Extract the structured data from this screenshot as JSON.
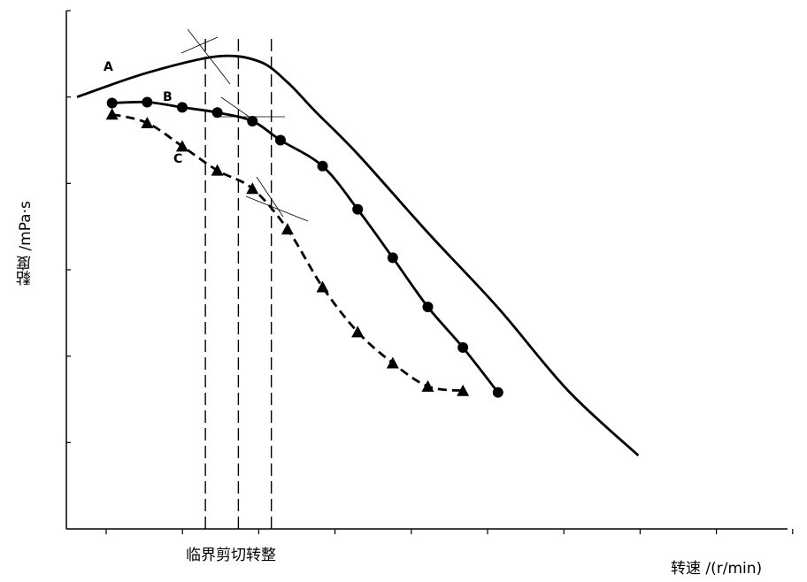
{
  "chart_data": {
    "type": "line",
    "title": "",
    "xlabel": "转速 /(r/min)",
    "ylabel": "黏度 /mPa·s",
    "annotation": "临界剪切转整",
    "xlim": [
      0,
      10
    ],
    "ylim": [
      0,
      6
    ],
    "grid": false,
    "series": [
      {
        "name": "A",
        "marker": "none",
        "line": "solid",
        "x": [
          0,
          1.0,
          2.0,
          2.6,
          3.0,
          3.4,
          4.0,
          5.0,
          6.0,
          7.0,
          8.0
        ],
        "y": [
          5.0,
          5.28,
          5.47,
          5.41,
          5.17,
          4.83,
          4.34,
          3.43,
          2.56,
          1.6,
          0.85
        ]
      },
      {
        "name": "B",
        "marker": "circle",
        "line": "solid",
        "x": [
          0.5,
          1.0,
          1.5,
          2.0,
          2.5,
          2.9,
          3.5,
          4.0,
          4.5,
          5.0,
          5.5,
          6.0
        ],
        "y": [
          4.93,
          4.94,
          4.88,
          4.82,
          4.72,
          4.5,
          4.2,
          3.7,
          3.14,
          2.57,
          2.1,
          1.58
        ]
      },
      {
        "name": "C",
        "marker": "triangle",
        "line": "dashed",
        "x": [
          0.5,
          1.0,
          1.5,
          2.0,
          2.5,
          3.0,
          3.5,
          4.0,
          4.5,
          5.0,
          5.5
        ],
        "y": [
          4.8,
          4.7,
          4.43,
          4.15,
          3.94,
          3.47,
          2.8,
          2.28,
          1.92,
          1.65,
          1.6
        ]
      }
    ],
    "critical_x": [
      1.83,
      2.3,
      2.77
    ]
  }
}
